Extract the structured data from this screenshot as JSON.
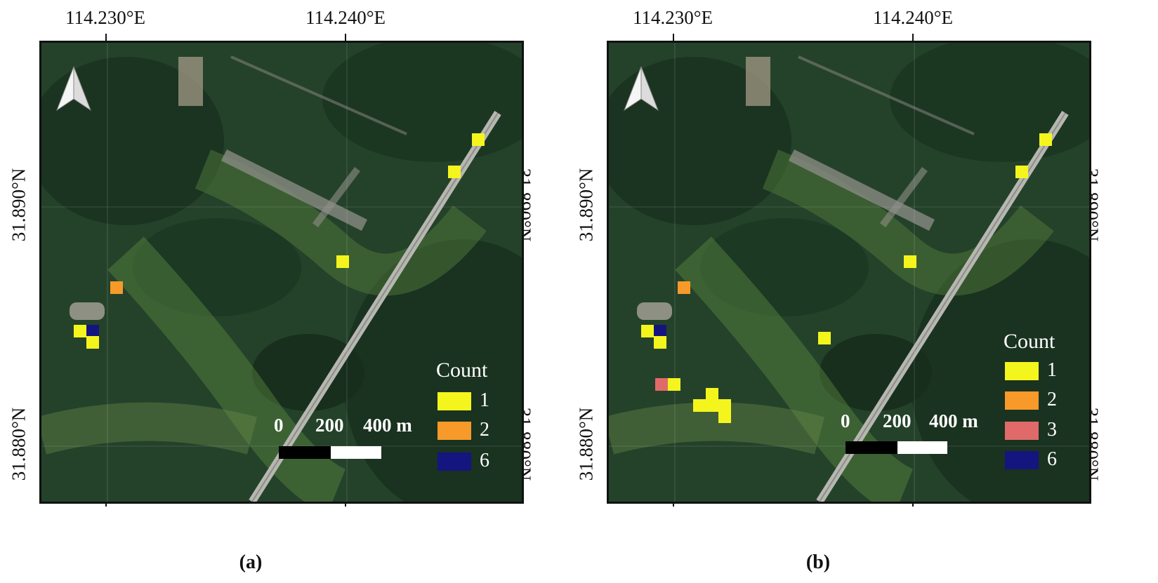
{
  "axis_labels": {
    "lon_left": "114.230°E",
    "lon_right": "114.240°E",
    "lat_top": "31.890°N",
    "lat_bottom": "31.880°N"
  },
  "colors": {
    "count_1": "#f5f51e",
    "count_2": "#f79a2a",
    "count_3": "#e06a6a",
    "count_6": "#15157f"
  },
  "scale_bar": {
    "zero": "0",
    "mid": "200",
    "end": "400 m"
  },
  "north_arrow_icon": "north-arrow-icon",
  "panels": [
    {
      "caption": "(a)",
      "legend": {
        "title": "Count",
        "items": [
          {
            "label": "1",
            "color": "#f5f51e"
          },
          {
            "label": "2",
            "color": "#f79a2a"
          },
          {
            "label": "6",
            "color": "#15157f"
          }
        ]
      }
    },
    {
      "caption": "(b)",
      "legend": {
        "title": "Count",
        "items": [
          {
            "label": "1",
            "color": "#f5f51e"
          },
          {
            "label": "2",
            "color": "#f79a2a"
          },
          {
            "label": "3",
            "color": "#e06a6a"
          },
          {
            "label": "6",
            "color": "#15157f"
          }
        ]
      }
    }
  ]
}
